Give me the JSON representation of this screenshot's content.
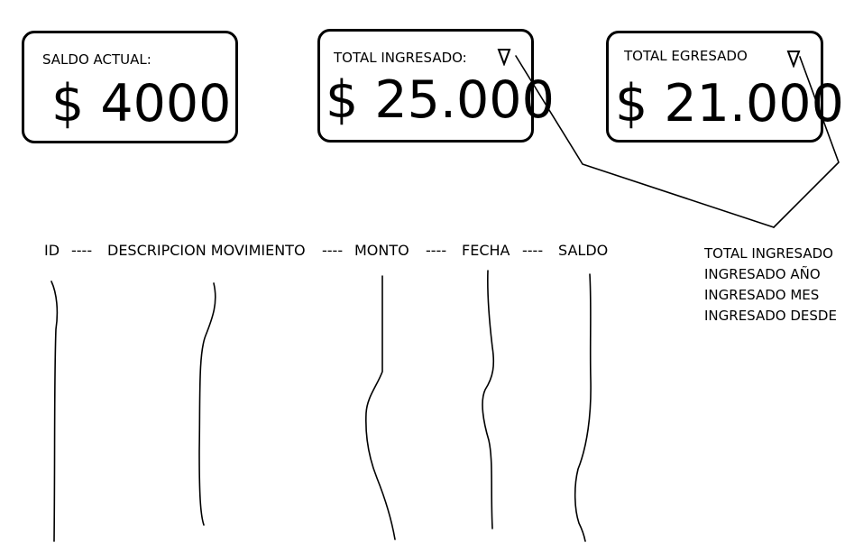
{
  "cards": {
    "saldo": {
      "label": "SALDO ACTUAL:",
      "value": "$ 4000"
    },
    "ingresado": {
      "label": "TOTAL INGRESADO:",
      "value": "$ 25.000"
    },
    "egresado": {
      "label": "TOTAL EGRESADO",
      "value": "$ 21.000"
    }
  },
  "table": {
    "headers": [
      "ID",
      "DESCRIPCION MOVIMIENTO",
      "MONTO",
      "FECHA",
      "SALDO"
    ],
    "separator": "----"
  },
  "dropdown": {
    "options": [
      "TOTAL INGRESADO",
      "INGRESADO AÑO",
      "INGRESADO MES",
      "INGRESADO DESDE"
    ]
  },
  "icons": {
    "dropdown": "triangle-down-icon"
  }
}
